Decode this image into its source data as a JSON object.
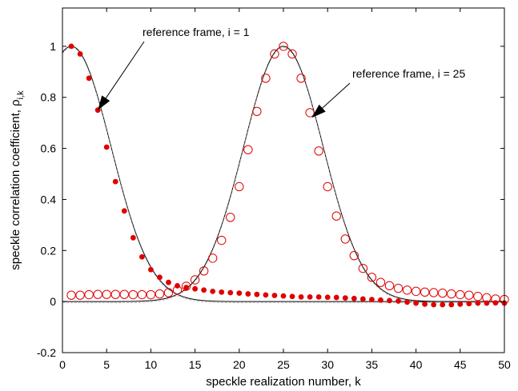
{
  "chart_data": {
    "type": "scatter",
    "xlabel": "speckle realization number, k",
    "ylabel_main": "speckle correlation coefficient, ρ",
    "ylabel_subscript": "i,k",
    "xlim": [
      0,
      50
    ],
    "ylim": [
      -0.2,
      1.15
    ],
    "xticks": [
      0,
      5,
      10,
      15,
      20,
      25,
      30,
      35,
      40,
      45,
      50
    ],
    "yticks": [
      -0.2,
      0,
      0.2,
      0.4,
      0.6,
      0.8,
      1
    ],
    "ytick_labels": [
      "-0.2",
      "0",
      "0.2",
      "0.4",
      "0.6",
      "0.8",
      "1"
    ],
    "grid": false,
    "series": [
      {
        "marker": "filled-circle",
        "color": "#e00000",
        "x": [
          1,
          2,
          3,
          4,
          5,
          6,
          7,
          8,
          9,
          10,
          11,
          12,
          13,
          14,
          15,
          16,
          17,
          18,
          19,
          20,
          21,
          22,
          23,
          24,
          25,
          26,
          27,
          28,
          29,
          30,
          31,
          32,
          33,
          34,
          35,
          36,
          37,
          38,
          39,
          40,
          41,
          42,
          43,
          44,
          45,
          46,
          47,
          48,
          49,
          50
        ],
        "y": [
          1.0,
          0.97,
          0.875,
          0.75,
          0.605,
          0.47,
          0.355,
          0.25,
          0.175,
          0.125,
          0.095,
          0.075,
          0.062,
          0.055,
          0.05,
          0.045,
          0.04,
          0.037,
          0.035,
          0.033,
          0.03,
          0.028,
          0.026,
          0.024,
          0.022,
          0.02,
          0.018,
          0.018,
          0.018,
          0.017,
          0.016,
          0.014,
          0.012,
          0.01,
          0.008,
          0.006,
          0.004,
          0.002,
          -0.002,
          -0.006,
          -0.01,
          -0.012,
          -0.012,
          -0.012,
          -0.01,
          -0.008,
          -0.006,
          -0.006,
          -0.005,
          -0.006
        ]
      },
      {
        "marker": "open-circle",
        "color": "#e00000",
        "x": [
          1,
          2,
          3,
          4,
          5,
          6,
          7,
          8,
          9,
          10,
          11,
          12,
          13,
          14,
          15,
          16,
          17,
          18,
          19,
          20,
          21,
          22,
          23,
          24,
          25,
          26,
          27,
          28,
          29,
          30,
          31,
          32,
          33,
          34,
          35,
          36,
          37,
          38,
          39,
          40,
          41,
          42,
          43,
          44,
          45,
          46,
          47,
          48,
          49,
          50
        ],
        "y": [
          0.025,
          0.025,
          0.027,
          0.028,
          0.028,
          0.028,
          0.028,
          0.027,
          0.027,
          0.027,
          0.03,
          0.035,
          0.045,
          0.06,
          0.085,
          0.12,
          0.17,
          0.24,
          0.33,
          0.45,
          0.595,
          0.745,
          0.875,
          0.97,
          1.0,
          0.97,
          0.875,
          0.74,
          0.59,
          0.45,
          0.335,
          0.245,
          0.18,
          0.13,
          0.095,
          0.075,
          0.062,
          0.052,
          0.045,
          0.04,
          0.037,
          0.035,
          0.033,
          0.03,
          0.027,
          0.025,
          0.02,
          0.015,
          0.01,
          0.008
        ]
      }
    ],
    "fit_curves": [
      {
        "center": 1,
        "sigma": 4.5
      },
      {
        "center": 25,
        "sigma": 4.5
      }
    ],
    "dashed_curves": [
      {
        "center": 1,
        "sigma": 4.5,
        "shift": -0.005
      },
      {
        "center": 25,
        "sigma": 4.5,
        "shift": -0.005
      }
    ],
    "annotations": [
      {
        "text": "reference frame, i = 1",
        "target": [
          4,
          0.75
        ]
      },
      {
        "text": "reference frame, i = 25",
        "target": [
          28.2,
          0.72
        ]
      }
    ]
  }
}
